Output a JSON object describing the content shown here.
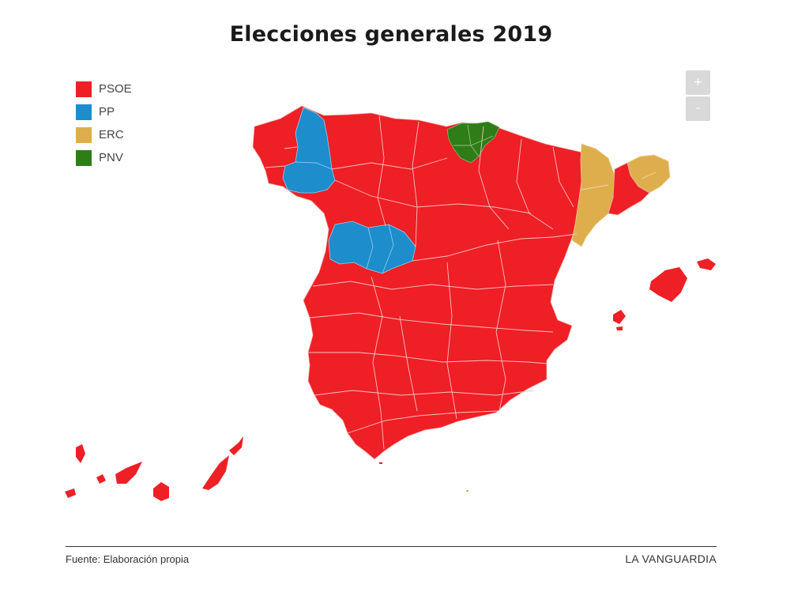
{
  "title": "Elecciones generales 2019",
  "legend": [
    {
      "label": "PSOE",
      "color": "#ee1f25"
    },
    {
      "label": "PP",
      "color": "#1d8dcc"
    },
    {
      "label": "ERC",
      "color": "#deae4d"
    },
    {
      "label": "PNV",
      "color": "#2e7d17"
    }
  ],
  "zoom": {
    "in_label": "+",
    "out_label": "–"
  },
  "regions": {
    "peninsula": "PSOE",
    "galicia_east": "PP",
    "castilla_west": "PP",
    "basque": "PNV",
    "catalonia_west": "ERC",
    "catalonia_north": "ERC",
    "barcelona": "PSOE",
    "balearics": "PSOE",
    "canarias": "PSOE"
  },
  "footer": {
    "source": "Fuente: Elaboración propia",
    "brand": "LA VANGUARDIA"
  }
}
